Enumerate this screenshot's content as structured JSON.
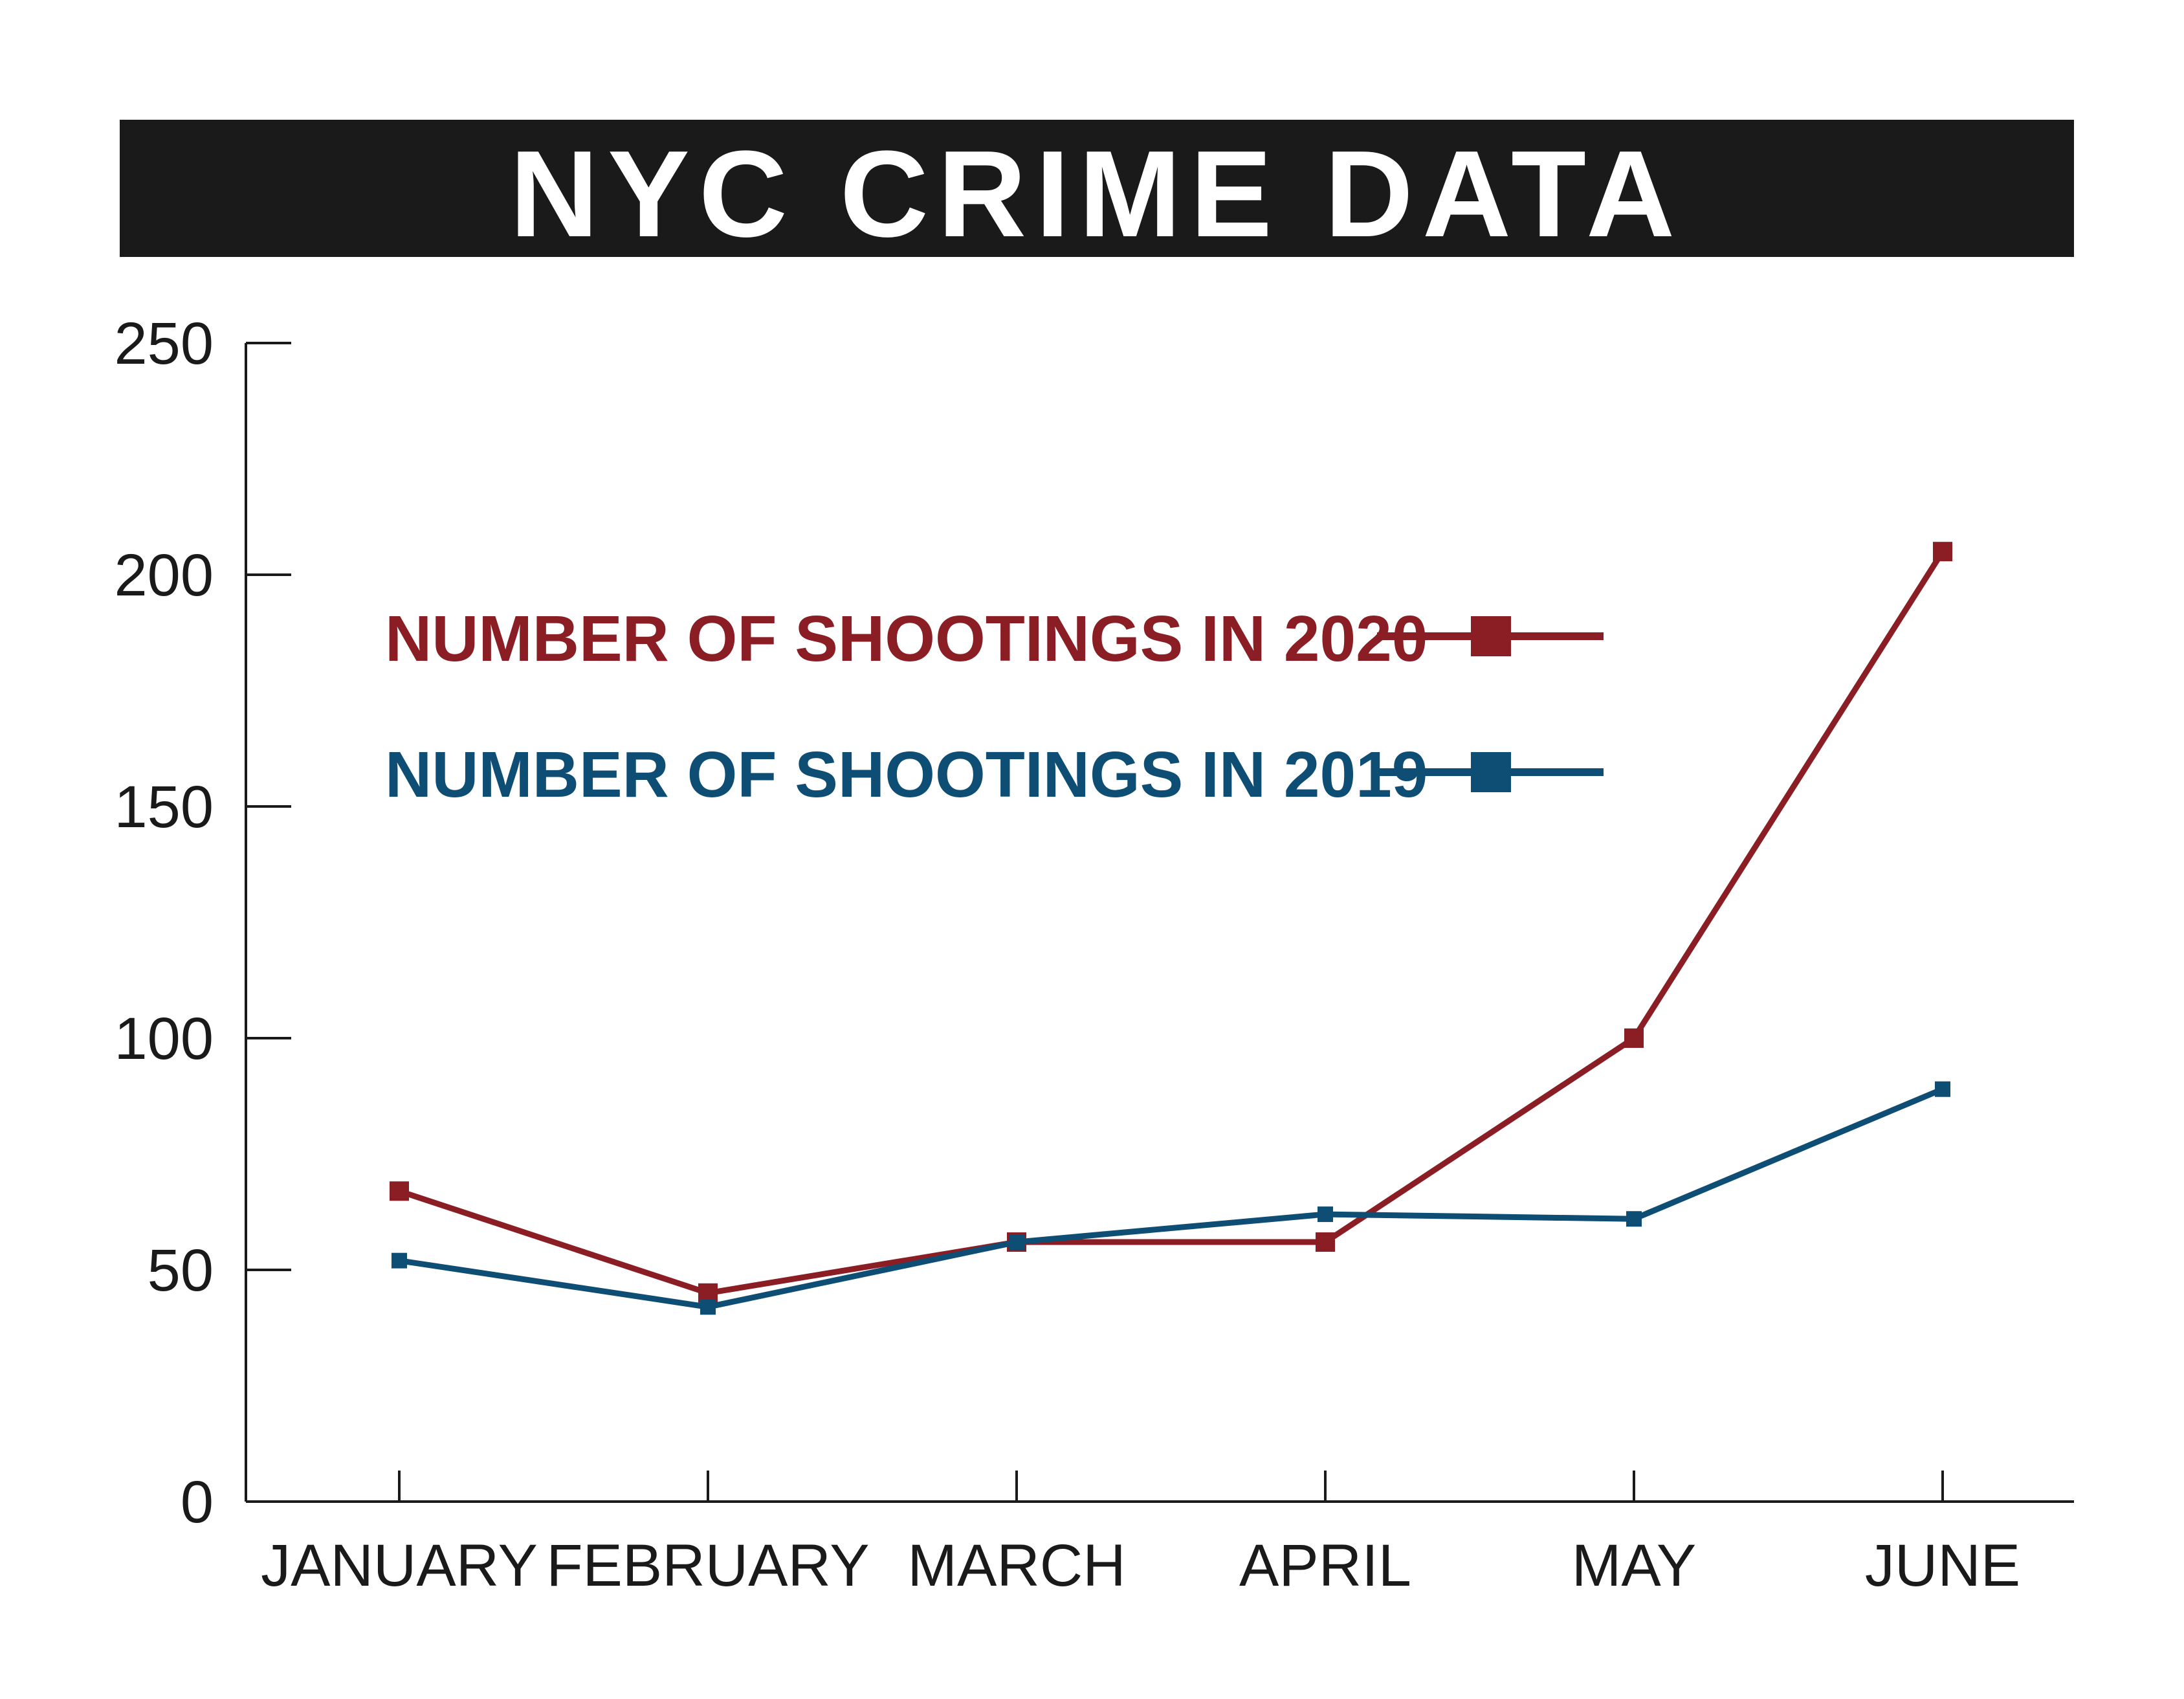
{
  "title": "NYC CRIME DATA",
  "colors": {
    "title_bar": "#1a1a1a",
    "title_text": "#ffffff",
    "axis": "#1a1a1a",
    "series_2020": "#8b1e24",
    "series_2019": "#0e4e74"
  },
  "chart_data": {
    "type": "line",
    "title": "NYC CRIME DATA",
    "xlabel": "",
    "ylabel": "",
    "categories": [
      "JANUARY",
      "FEBRUARY",
      "MARCH",
      "APRIL",
      "MAY",
      "JUNE"
    ],
    "ylim": [
      0,
      250
    ],
    "yticks": [
      0,
      50,
      100,
      150,
      200,
      250
    ],
    "ytick_labels": [
      "0",
      "50",
      "100",
      "150",
      "200",
      "250"
    ],
    "grid": false,
    "legend_position": "upper-left inside plot",
    "series": [
      {
        "name": "NUMBER OF SHOOTINGS IN 2020",
        "color": "#8b1e24",
        "values": [
          67,
          45,
          56,
          56,
          100,
          205
        ]
      },
      {
        "name": "NUMBER OF SHOOTINGS IN 2019",
        "color": "#0e4e74",
        "values": [
          52,
          42,
          56,
          62,
          61,
          89
        ]
      }
    ]
  }
}
